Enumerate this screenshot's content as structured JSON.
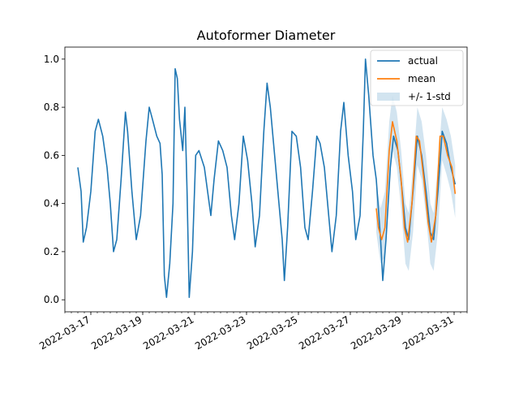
{
  "chart_data": {
    "type": "line",
    "title": "Autoformer Diameter",
    "xlabel": "",
    "ylabel": "",
    "xlim": [
      "2022-03-16T00:00",
      "2022-03-31T12:00"
    ],
    "ylim": [
      -0.05,
      1.05
    ],
    "yticks": [
      0.0,
      0.2,
      0.4,
      0.6,
      0.8,
      1.0
    ],
    "ytick_labels": [
      "0.0",
      "0.2",
      "0.4",
      "0.6",
      "0.8",
      "1.0"
    ],
    "xticks": [
      "2022-03-17",
      "2022-03-19",
      "2022-03-21",
      "2022-03-23",
      "2022-03-25",
      "2022-03-27",
      "2022-03-29",
      "2022-03-31"
    ],
    "xtick_labels": [
      "2022-03-17",
      "2022-03-19",
      "2022-03-21",
      "2022-03-23",
      "2022-03-25",
      "2022-03-27",
      "2022-03-29",
      "2022-03-31"
    ],
    "grid": false,
    "legend_position": "top-right",
    "series": [
      {
        "name": "actual",
        "kind": "line",
        "color": "#1f77b4",
        "points": [
          [
            "2022-03-16T12:00",
            0.55
          ],
          [
            "2022-03-16T15:00",
            0.45
          ],
          [
            "2022-03-16T17:00",
            0.24
          ],
          [
            "2022-03-16T20:00",
            0.3
          ],
          [
            "2022-03-17T00:00",
            0.45
          ],
          [
            "2022-03-17T04:00",
            0.7
          ],
          [
            "2022-03-17T07:00",
            0.75
          ],
          [
            "2022-03-17T11:00",
            0.68
          ],
          [
            "2022-03-17T15:00",
            0.55
          ],
          [
            "2022-03-17T18:00",
            0.4
          ],
          [
            "2022-03-17T21:00",
            0.2
          ],
          [
            "2022-03-18T00:00",
            0.25
          ],
          [
            "2022-03-18T04:00",
            0.5
          ],
          [
            "2022-03-18T08:00",
            0.78
          ],
          [
            "2022-03-18T10:00",
            0.7
          ],
          [
            "2022-03-18T14:00",
            0.45
          ],
          [
            "2022-03-18T18:00",
            0.25
          ],
          [
            "2022-03-18T22:00",
            0.35
          ],
          [
            "2022-03-19T03:00",
            0.66
          ],
          [
            "2022-03-19T06:00",
            0.8
          ],
          [
            "2022-03-19T09:00",
            0.75
          ],
          [
            "2022-03-19T13:00",
            0.68
          ],
          [
            "2022-03-19T16:00",
            0.65
          ],
          [
            "2022-03-19T18:00",
            0.52
          ],
          [
            "2022-03-19T20:00",
            0.1
          ],
          [
            "2022-03-19T22:00",
            0.01
          ],
          [
            "2022-03-20T01:00",
            0.15
          ],
          [
            "2022-03-20T04:00",
            0.4
          ],
          [
            "2022-03-20T06:00",
            0.96
          ],
          [
            "2022-03-20T08:00",
            0.92
          ],
          [
            "2022-03-20T10:00",
            0.75
          ],
          [
            "2022-03-20T13:00",
            0.62
          ],
          [
            "2022-03-20T15:00",
            0.8
          ],
          [
            "2022-03-20T17:00",
            0.45
          ],
          [
            "2022-03-20T19:00",
            0.01
          ],
          [
            "2022-03-20T22:00",
            0.2
          ],
          [
            "2022-03-21T01:00",
            0.6
          ],
          [
            "2022-03-21T04:00",
            0.62
          ],
          [
            "2022-03-21T09:00",
            0.55
          ],
          [
            "2022-03-21T12:00",
            0.45
          ],
          [
            "2022-03-21T15:00",
            0.35
          ],
          [
            "2022-03-21T18:00",
            0.5
          ],
          [
            "2022-03-21T22:00",
            0.66
          ],
          [
            "2022-03-22T02:00",
            0.62
          ],
          [
            "2022-03-22T06:00",
            0.55
          ],
          [
            "2022-03-22T10:00",
            0.35
          ],
          [
            "2022-03-22T13:00",
            0.25
          ],
          [
            "2022-03-22T17:00",
            0.4
          ],
          [
            "2022-03-22T21:00",
            0.68
          ],
          [
            "2022-03-23T01:00",
            0.58
          ],
          [
            "2022-03-23T05:00",
            0.4
          ],
          [
            "2022-03-23T08:00",
            0.22
          ],
          [
            "2022-03-23T12:00",
            0.35
          ],
          [
            "2022-03-23T16:00",
            0.7
          ],
          [
            "2022-03-23T19:00",
            0.9
          ],
          [
            "2022-03-23T22:00",
            0.8
          ],
          [
            "2022-03-24T02:00",
            0.6
          ],
          [
            "2022-03-24T06:00",
            0.4
          ],
          [
            "2022-03-24T09:00",
            0.25
          ],
          [
            "2022-03-24T11:00",
            0.08
          ],
          [
            "2022-03-24T14:00",
            0.3
          ],
          [
            "2022-03-24T18:00",
            0.7
          ],
          [
            "2022-03-24T22:00",
            0.68
          ],
          [
            "2022-03-25T02:00",
            0.55
          ],
          [
            "2022-03-25T06:00",
            0.3
          ],
          [
            "2022-03-25T09:00",
            0.25
          ],
          [
            "2022-03-25T13:00",
            0.45
          ],
          [
            "2022-03-25T17:00",
            0.68
          ],
          [
            "2022-03-25T20:00",
            0.65
          ],
          [
            "2022-03-26T00:00",
            0.55
          ],
          [
            "2022-03-26T04:00",
            0.35
          ],
          [
            "2022-03-26T07:00",
            0.2
          ],
          [
            "2022-03-26T11:00",
            0.35
          ],
          [
            "2022-03-26T15:00",
            0.7
          ],
          [
            "2022-03-26T18:00",
            0.82
          ],
          [
            "2022-03-26T22:00",
            0.6
          ],
          [
            "2022-03-27T02:00",
            0.45
          ],
          [
            "2022-03-27T05:00",
            0.25
          ],
          [
            "2022-03-27T09:00",
            0.35
          ],
          [
            "2022-03-27T12:00",
            0.7
          ],
          [
            "2022-03-27T14:00",
            1.0
          ],
          [
            "2022-03-27T17:00",
            0.85
          ],
          [
            "2022-03-27T21:00",
            0.6
          ],
          [
            "2022-03-28T00:00",
            0.5
          ],
          [
            "2022-03-28T04:00",
            0.25
          ],
          [
            "2022-03-28T06:00",
            0.08
          ],
          [
            "2022-03-28T09:00",
            0.25
          ],
          [
            "2022-03-28T13:00",
            0.55
          ],
          [
            "2022-03-28T16:00",
            0.68
          ],
          [
            "2022-03-28T20:00",
            0.62
          ],
          [
            "2022-03-29T00:00",
            0.45
          ],
          [
            "2022-03-29T03:00",
            0.3
          ],
          [
            "2022-03-29T06:00",
            0.25
          ],
          [
            "2022-03-29T10:00",
            0.45
          ],
          [
            "2022-03-29T14:00",
            0.68
          ],
          [
            "2022-03-29T18:00",
            0.6
          ],
          [
            "2022-03-29T22:00",
            0.45
          ],
          [
            "2022-03-30T02:00",
            0.28
          ],
          [
            "2022-03-30T05:00",
            0.25
          ],
          [
            "2022-03-30T09:00",
            0.45
          ],
          [
            "2022-03-30T13:00",
            0.7
          ],
          [
            "2022-03-30T17:00",
            0.65
          ],
          [
            "2022-03-30T21:00",
            0.55
          ],
          [
            "2022-03-31T01:00",
            0.48
          ]
        ]
      },
      {
        "name": "mean",
        "kind": "line",
        "color": "#ff7f0e",
        "points": [
          [
            "2022-03-28T00:00",
            0.38
          ],
          [
            "2022-03-28T02:00",
            0.3
          ],
          [
            "2022-03-28T05:00",
            0.25
          ],
          [
            "2022-03-28T08:00",
            0.3
          ],
          [
            "2022-03-28T12:00",
            0.62
          ],
          [
            "2022-03-28T15:00",
            0.74
          ],
          [
            "2022-03-28T19:00",
            0.66
          ],
          [
            "2022-03-28T23:00",
            0.5
          ],
          [
            "2022-03-29T02:00",
            0.3
          ],
          [
            "2022-03-29T05:00",
            0.24
          ],
          [
            "2022-03-29T09:00",
            0.4
          ],
          [
            "2022-03-29T13:00",
            0.68
          ],
          [
            "2022-03-29T16:00",
            0.66
          ],
          [
            "2022-03-29T20:00",
            0.5
          ],
          [
            "2022-03-30T00:00",
            0.32
          ],
          [
            "2022-03-30T03:00",
            0.24
          ],
          [
            "2022-03-30T07:00",
            0.35
          ],
          [
            "2022-03-30T11:00",
            0.68
          ],
          [
            "2022-03-30T14:00",
            0.68
          ],
          [
            "2022-03-30T18:00",
            0.6
          ],
          [
            "2022-03-30T22:00",
            0.55
          ],
          [
            "2022-03-31T01:00",
            0.44
          ]
        ]
      },
      {
        "name": "+/- 1-std",
        "kind": "band",
        "color": "#1f77b4",
        "band": [
          [
            "2022-03-28T00:00",
            0.28,
            0.48
          ],
          [
            "2022-03-28T04:00",
            0.15,
            0.38
          ],
          [
            "2022-03-28T08:00",
            0.18,
            0.45
          ],
          [
            "2022-03-28T12:00",
            0.5,
            0.74
          ],
          [
            "2022-03-28T15:00",
            0.62,
            0.85
          ],
          [
            "2022-03-28T19:00",
            0.55,
            0.78
          ],
          [
            "2022-03-28T23:00",
            0.38,
            0.62
          ],
          [
            "2022-03-29T03:00",
            0.15,
            0.4
          ],
          [
            "2022-03-29T06:00",
            0.12,
            0.36
          ],
          [
            "2022-03-29T10:00",
            0.28,
            0.55
          ],
          [
            "2022-03-29T14:00",
            0.56,
            0.8
          ],
          [
            "2022-03-29T18:00",
            0.5,
            0.74
          ],
          [
            "2022-03-29T22:00",
            0.35,
            0.6
          ],
          [
            "2022-03-30T02:00",
            0.15,
            0.4
          ],
          [
            "2022-03-30T05:00",
            0.12,
            0.36
          ],
          [
            "2022-03-30T09:00",
            0.28,
            0.56
          ],
          [
            "2022-03-30T13:00",
            0.58,
            0.8
          ],
          [
            "2022-03-30T17:00",
            0.52,
            0.75
          ],
          [
            "2022-03-30T21:00",
            0.45,
            0.68
          ],
          [
            "2022-03-31T01:00",
            0.34,
            0.56
          ]
        ]
      }
    ]
  }
}
